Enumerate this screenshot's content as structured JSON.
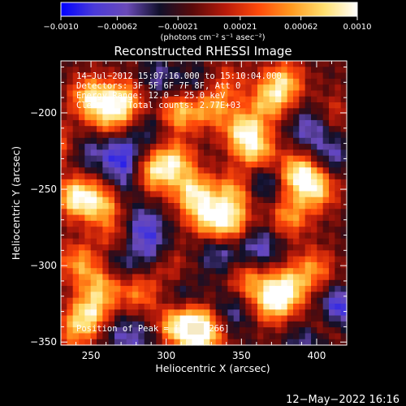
{
  "chart_data": {
    "type": "heatmap",
    "title": "Reconstructed RHESSI Image",
    "xlabel": "Heliocentric X (arcsec)",
    "ylabel": "Heliocentric Y (arcsec)",
    "xlim": [
      230,
      420
    ],
    "ylim": [
      -352,
      -166
    ],
    "x_ticks": [
      250,
      300,
      350,
      400
    ],
    "x_tick_labels": [
      "250",
      "300",
      "350",
      "400"
    ],
    "y_ticks": [
      -350,
      -300,
      -250,
      -200
    ],
    "y_tick_labels": [
      "−350",
      "−300",
      "−250",
      "−200"
    ],
    "colorbar": {
      "range": [
        -0.001,
        0.001
      ],
      "ticks": [
        -0.001,
        -0.00062,
        -0.00021,
        0.00021,
        0.00062,
        0.001
      ],
      "tick_labels": [
        "−0.0010",
        "−0.00062",
        "−0.00021",
        "0.00021",
        "0.00062",
        "0.0010"
      ],
      "unit_label": "(photons cm⁻² s⁻¹ asec⁻²)",
      "colors": [
        "#0000ff",
        "#4a3ad8",
        "#6a4ab8",
        "#10102a",
        "#5a0a0a",
        "#b81a0a",
        "#ff4a0a",
        "#ff9a20",
        "#ffe070",
        "#ffffff"
      ]
    },
    "annotations": [
      "14−Jul−2012 15:07:16.000 to 15:10:04.000",
      "Detectors: 3F 5F 6F 7F 8F, Att 0",
      "Energy Range: 12.0 − 25.0 keV",
      "Clean     Total counts: 2.77E+03"
    ],
    "peak_label": "Position of Peak = [2",
    "peak_label_tail": ".266]",
    "hotspots": [
      {
        "x": 240,
        "y": -255,
        "v": 0.001
      },
      {
        "x": 257,
        "y": -260,
        "v": 0.00075
      },
      {
        "x": 250,
        "y": -190,
        "v": 0.0009
      },
      {
        "x": 272,
        "y": -192,
        "v": 0.00085
      },
      {
        "x": 262,
        "y": -203,
        "v": 0.0006
      },
      {
        "x": 308,
        "y": -200,
        "v": 0.0008
      },
      {
        "x": 330,
        "y": -196,
        "v": 0.0007
      },
      {
        "x": 378,
        "y": -180,
        "v": 0.0008
      },
      {
        "x": 368,
        "y": -193,
        "v": 0.0007
      },
      {
        "x": 352,
        "y": -212,
        "v": 0.00095
      },
      {
        "x": 360,
        "y": -226,
        "v": 0.00075
      },
      {
        "x": 290,
        "y": -240,
        "v": 0.0008
      },
      {
        "x": 305,
        "y": -232,
        "v": 0.00085
      },
      {
        "x": 318,
        "y": -252,
        "v": 0.0009
      },
      {
        "x": 327,
        "y": -268,
        "v": 0.00075
      },
      {
        "x": 345,
        "y": -252,
        "v": 0.0007
      },
      {
        "x": 342,
        "y": -272,
        "v": 0.00085
      },
      {
        "x": 388,
        "y": -240,
        "v": 0.001
      },
      {
        "x": 400,
        "y": -250,
        "v": 0.0008
      },
      {
        "x": 382,
        "y": -268,
        "v": 0.00065
      },
      {
        "x": 242,
        "y": -298,
        "v": 0.00065
      },
      {
        "x": 258,
        "y": -312,
        "v": 0.0007
      },
      {
        "x": 250,
        "y": -330,
        "v": 0.0008
      },
      {
        "x": 240,
        "y": -342,
        "v": 0.0006
      },
      {
        "x": 282,
        "y": -318,
        "v": 0.00055
      },
      {
        "x": 300,
        "y": -298,
        "v": 0.00045
      },
      {
        "x": 305,
        "y": -340,
        "v": 0.0008
      },
      {
        "x": 320,
        "y": -338,
        "v": 0.0009
      },
      {
        "x": 325,
        "y": -348,
        "v": 0.0007
      },
      {
        "x": 355,
        "y": -310,
        "v": 0.0006
      },
      {
        "x": 380,
        "y": -315,
        "v": 0.00095
      },
      {
        "x": 370,
        "y": -325,
        "v": 0.0008
      },
      {
        "x": 398,
        "y": -302,
        "v": 0.0006
      },
      {
        "x": 405,
        "y": -340,
        "v": 0.0004
      },
      {
        "x": 265,
        "y": -280,
        "v": 0.00035
      },
      {
        "x": 232,
        "y": -222,
        "v": 0.0005
      },
      {
        "x": 340,
        "y": -180,
        "v": 0.0004
      },
      {
        "x": 412,
        "y": -200,
        "v": 0.0003
      },
      {
        "x": 290,
        "y": -210,
        "v": -0.0003
      },
      {
        "x": 245,
        "y": -225,
        "v": -0.00045
      },
      {
        "x": 270,
        "y": -228,
        "v": -0.0007
      },
      {
        "x": 275,
        "y": -245,
        "v": -0.0004
      },
      {
        "x": 295,
        "y": -178,
        "v": -0.0004
      },
      {
        "x": 285,
        "y": -275,
        "v": -0.0006
      },
      {
        "x": 292,
        "y": -292,
        "v": -0.0005
      },
      {
        "x": 268,
        "y": -300,
        "v": -0.0004
      },
      {
        "x": 365,
        "y": -245,
        "v": -0.0005
      },
      {
        "x": 362,
        "y": -288,
        "v": -0.00055
      },
      {
        "x": 395,
        "y": -210,
        "v": -0.0005
      },
      {
        "x": 410,
        "y": -228,
        "v": -0.00045
      },
      {
        "x": 415,
        "y": -328,
        "v": -0.0008
      },
      {
        "x": 335,
        "y": -292,
        "v": -0.00045
      },
      {
        "x": 345,
        "y": -330,
        "v": -0.0004
      },
      {
        "x": 270,
        "y": -345,
        "v": -0.0004
      },
      {
        "x": 322,
        "y": -182,
        "v": -0.00035
      },
      {
        "x": 395,
        "y": -350,
        "v": -0.0005
      },
      {
        "x": 312,
        "y": -322,
        "v": -0.0003
      },
      {
        "x": 288,
        "y": -347,
        "v": -0.0003
      }
    ]
  },
  "footer": {
    "date_stamp": "12−May−2022 16:16"
  }
}
